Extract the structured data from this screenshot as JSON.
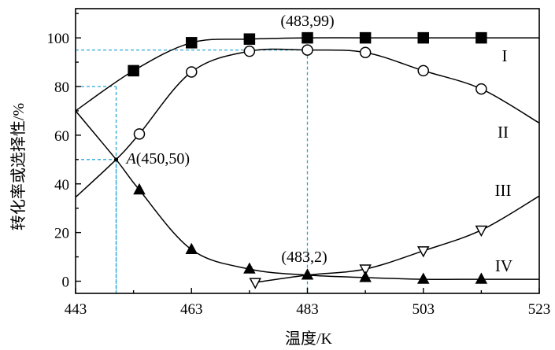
{
  "chart_data": {
    "type": "line",
    "xlabel": "温度/K",
    "ylabel": "转化率或选择性/%",
    "xlim": [
      443,
      523
    ],
    "ylim": [
      -5,
      112
    ],
    "x_ticks": [
      "443",
      "463",
      "483",
      "503",
      "523"
    ],
    "y_ticks": [
      "0",
      "20",
      "40",
      "60",
      "80",
      "100"
    ],
    "grid": false,
    "series": [
      {
        "name": "I",
        "marker": "filled-square",
        "color": "#000000",
        "points": [
          [
            453,
            86.5
          ],
          [
            463,
            98
          ],
          [
            473,
            99.5
          ],
          [
            483,
            100
          ],
          [
            493,
            100
          ],
          [
            503,
            100
          ],
          [
            513,
            100
          ]
        ],
        "curve": [
          [
            443,
            70
          ],
          [
            453,
            86.5
          ],
          [
            463,
            98
          ],
          [
            473,
            99.5
          ],
          [
            483,
            100
          ],
          [
            493,
            100
          ],
          [
            503,
            100
          ],
          [
            513,
            100
          ],
          [
            523,
            100
          ]
        ]
      },
      {
        "name": "II",
        "marker": "open-circle",
        "color": "#000000",
        "points": [
          [
            454,
            60.5
          ],
          [
            463,
            86
          ],
          [
            473,
            94.5
          ],
          [
            483,
            95
          ],
          [
            493,
            94
          ],
          [
            503,
            86.5
          ],
          [
            513,
            79
          ]
        ],
        "curve": [
          [
            443,
            34.5
          ],
          [
            450,
            50
          ],
          [
            454,
            60.5
          ],
          [
            463,
            86
          ],
          [
            473,
            94.5
          ],
          [
            483,
            95
          ],
          [
            493,
            94
          ],
          [
            503,
            86.5
          ],
          [
            513,
            79
          ],
          [
            523,
            65
          ]
        ]
      },
      {
        "name": "III",
        "marker": "open-triangle-down",
        "color": "#000000",
        "points": [
          [
            474,
            -0.5
          ],
          [
            493,
            5
          ],
          [
            503,
            12.5
          ],
          [
            513,
            21
          ]
        ],
        "curve": [
          [
            474,
            -0.5
          ],
          [
            483,
            2.5
          ],
          [
            493,
            5
          ],
          [
            503,
            12.5
          ],
          [
            513,
            21
          ],
          [
            523,
            35
          ]
        ]
      },
      {
        "name": "IV",
        "marker": "filled-triangle-up",
        "color": "#000000",
        "points": [
          [
            454,
            37.5
          ],
          [
            463,
            13
          ],
          [
            473,
            5
          ],
          [
            483,
            2.5
          ],
          [
            493,
            1.5
          ],
          [
            503,
            0.8
          ],
          [
            513,
            0.8
          ]
        ],
        "curve": [
          [
            443,
            70
          ],
          [
            450,
            50
          ],
          [
            454,
            37.5
          ],
          [
            463,
            13
          ],
          [
            473,
            5
          ],
          [
            483,
            2.5
          ],
          [
            493,
            1.5
          ],
          [
            503,
            0.8
          ],
          [
            513,
            0.8
          ],
          [
            523,
            0.8
          ]
        ]
      }
    ],
    "annotations": {
      "point_a": {
        "italic": "A",
        "text": "(450,50)",
        "x": 450,
        "y": 50
      },
      "peak_label": {
        "text": "(483,99)",
        "x": 483,
        "y": 99
      },
      "low_label": {
        "text": "(483,2)",
        "x": 483,
        "y": 2
      }
    },
    "reference_lines": {
      "color": "#2aa7d8",
      "items": [
        {
          "x": 450,
          "y": 80
        },
        {
          "x": 450,
          "y": 50
        },
        {
          "x": 483,
          "y": 95
        }
      ]
    }
  }
}
